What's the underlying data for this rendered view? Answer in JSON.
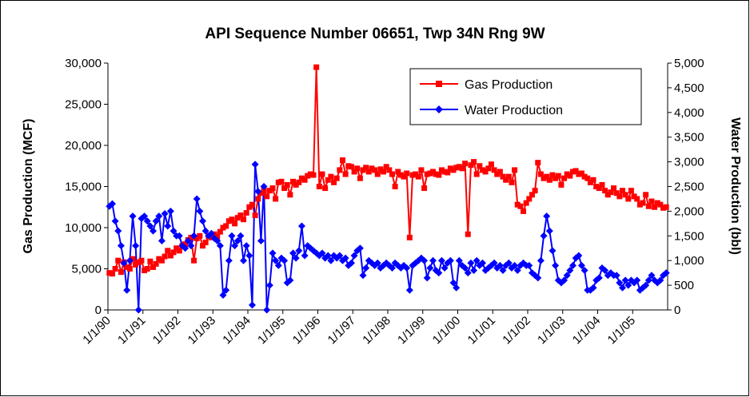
{
  "chart_data": {
    "type": "line",
    "title": "API Sequence Number 06651, Twp 34N Rng 9W",
    "y_label": "Gas Production (MCF)",
    "y2_label": "Water Production (bbl)",
    "legend": "upper right",
    "categories": [
      "1/1/90",
      null,
      null,
      null,
      null,
      null,
      null,
      null,
      null,
      null,
      null,
      null,
      "1/1/91",
      null,
      null,
      null,
      null,
      null,
      null,
      null,
      null,
      null,
      null,
      null,
      "1/1/92",
      null,
      null,
      null,
      null,
      null,
      null,
      null,
      null,
      null,
      null,
      null,
      "1/1/93",
      null,
      null,
      null,
      null,
      null,
      null,
      null,
      null,
      null,
      null,
      null,
      "1/1/94",
      null,
      null,
      null,
      null,
      null,
      null,
      null,
      null,
      null,
      null,
      null,
      "1/1/95",
      null,
      null,
      null,
      null,
      null,
      null,
      null,
      null,
      null,
      null,
      null,
      "1/1/96",
      null,
      null,
      null,
      null,
      null,
      null,
      null,
      null,
      null,
      null,
      null,
      "1/1/97",
      null,
      null,
      null,
      null,
      null,
      null,
      null,
      null,
      null,
      null,
      null,
      "1/1/98",
      null,
      null,
      null,
      null,
      null,
      null,
      null,
      null,
      null,
      null,
      null,
      "1/1/99",
      null,
      null,
      null,
      null,
      null,
      null,
      null,
      null,
      null,
      null,
      null,
      "1/1/00",
      null,
      null,
      null,
      null,
      null,
      null,
      null,
      null,
      null,
      null,
      null,
      "1/1/01",
      null,
      null,
      null,
      null,
      null,
      null,
      null,
      null,
      null,
      null,
      null,
      "1/1/02",
      null,
      null,
      null,
      null,
      null,
      null,
      null,
      null,
      null,
      null,
      null,
      "1/1/03",
      null,
      null,
      null,
      null,
      null,
      null,
      null,
      null,
      null,
      null,
      null,
      "1/1/04",
      null,
      null,
      null,
      null,
      null,
      null,
      null,
      null,
      null,
      null,
      null,
      "1/1/05",
      null,
      null,
      null,
      null,
      null,
      null,
      null,
      null,
      null,
      null,
      null
    ],
    "series": [
      {
        "name": "Gas Production",
        "color": "#ff0000",
        "marker": "square",
        "axis": "y",
        "values": [
          4500,
          4400,
          5000,
          6000,
          4600,
          5800,
          5200,
          5000,
          6200,
          5500,
          5800,
          6000,
          4800,
          5000,
          5900,
          5200,
          5600,
          6200,
          6000,
          6500,
          7200,
          6600,
          7000,
          7500,
          7200,
          7800,
          8000,
          8500,
          8800,
          6000,
          8700,
          9000,
          7800,
          8200,
          9000,
          8800,
          9200,
          8900,
          9500,
          10000,
          10200,
          10800,
          11000,
          10500,
          11200,
          11500,
          11000,
          11800,
          12500,
          12800,
          11500,
          13500,
          14200,
          14500,
          13800,
          14500,
          14800,
          13500,
          15500,
          15600,
          14800,
          15200,
          14000,
          15600,
          15200,
          15500,
          16000,
          15800,
          16300,
          16500,
          16400,
          29500,
          15000,
          16500,
          14800,
          15800,
          16200,
          15500,
          16000,
          17000,
          18200,
          16500,
          17500,
          17400,
          16800,
          17200,
          16000,
          17000,
          17300,
          16800,
          17200,
          17000,
          16500,
          17100,
          16800,
          17400,
          17000,
          16500,
          15000,
          16800,
          16400,
          16200,
          16600,
          8800,
          16400,
          16500,
          16200,
          17000,
          14800,
          16500,
          16600,
          16800,
          16500,
          16400,
          17000,
          16800,
          16700,
          17200,
          17000,
          17300,
          17400,
          17200,
          17800,
          9200,
          17600,
          18000,
          16500,
          17500,
          17000,
          16800,
          17200,
          17700,
          17000,
          16500,
          16800,
          16200,
          15800,
          16200,
          15500,
          17000,
          12800,
          12600,
          12000,
          13000,
          13500,
          14000,
          14500,
          17900,
          16500,
          16000,
          16200,
          15800,
          16400,
          16000,
          16300,
          15200,
          16000,
          16500,
          16300,
          16800,
          16900,
          16500,
          16600,
          16200,
          16000,
          15500,
          15800,
          15000,
          14800,
          15200,
          14500,
          14000,
          14300,
          14800,
          14200,
          13800,
          14500,
          14000,
          13500,
          14500,
          13800,
          13500,
          12800,
          13000,
          14000,
          12600,
          13200,
          12500,
          13000,
          12800,
          12400,
          12500
        ]
      },
      {
        "name": "Water Production",
        "color": "#0000ff",
        "marker": "diamond",
        "axis": "y2",
        "values": [
          2100,
          2150,
          1800,
          1600,
          1300,
          950,
          400,
          1000,
          1900,
          1300,
          0,
          1850,
          1900,
          1800,
          1700,
          1600,
          1800,
          1900,
          1400,
          1950,
          1700,
          2000,
          1600,
          1500,
          1500,
          1300,
          1250,
          1400,
          1300,
          1500,
          2250,
          2000,
          1800,
          1600,
          1500,
          1550,
          1450,
          1400,
          1300,
          300,
          400,
          1000,
          1500,
          1300,
          1400,
          1500,
          1000,
          1300,
          1100,
          100,
          2950,
          2400,
          1400,
          2500,
          0,
          500,
          1150,
          1000,
          900,
          1050,
          1000,
          550,
          600,
          1150,
          1050,
          1200,
          1700,
          1100,
          1300,
          1250,
          1200,
          1150,
          1100,
          1150,
          1050,
          1100,
          1000,
          1100,
          1050,
          1100,
          1000,
          1050,
          900,
          950,
          1100,
          1200,
          1250,
          700,
          850,
          1000,
          950,
          900,
          950,
          850,
          900,
          950,
          900,
          850,
          950,
          900,
          850,
          900,
          850,
          400,
          900,
          950,
          1000,
          1050,
          1000,
          650,
          850,
          1000,
          800,
          750,
          1000,
          850,
          950,
          1000,
          550,
          450,
          1000,
          900,
          850,
          750,
          950,
          800,
          1000,
          900,
          950,
          800,
          850,
          900,
          950,
          850,
          900,
          800,
          900,
          950,
          850,
          900,
          800,
          900,
          950,
          900,
          900,
          750,
          700,
          650,
          1000,
          1500,
          1900,
          1600,
          1200,
          900,
          600,
          550,
          600,
          700,
          800,
          900,
          1050,
          1100,
          900,
          800,
          400,
          400,
          450,
          600,
          650,
          850,
          800,
          700,
          750,
          700,
          700,
          550,
          450,
          600,
          500,
          600,
          550,
          600,
          400,
          450,
          500,
          600,
          700,
          600,
          550,
          600,
          700,
          750
        ]
      }
    ],
    "ylim": [
      0,
      30000
    ],
    "yticks": [
      0,
      {
        "value": 5000,
        "label": "5,000"
      },
      {
        "value": 10000,
        "label": "10,000"
      },
      {
        "value": 15000,
        "label": "15,000"
      },
      {
        "value": 20000,
        "label": "20,000"
      },
      {
        "value": 25000,
        "label": "25,000"
      },
      {
        "value": 30000,
        "label": "30,000"
      }
    ],
    "y2lim": [
      0,
      5000
    ],
    "y2ticks": [
      0,
      500,
      {
        "value": 1000,
        "label": "1,000"
      },
      {
        "value": 1500,
        "label": "1,500"
      },
      {
        "value": 2000,
        "label": "2,000"
      },
      {
        "value": 2500,
        "label": "2,500"
      },
      {
        "value": 3000,
        "label": "3,000"
      },
      {
        "value": 3500,
        "label": "3,500"
      },
      {
        "value": 4000,
        "label": "4,000"
      },
      {
        "value": 4500,
        "label": "4,500"
      },
      {
        "value": 5000,
        "label": "5,000"
      }
    ]
  }
}
